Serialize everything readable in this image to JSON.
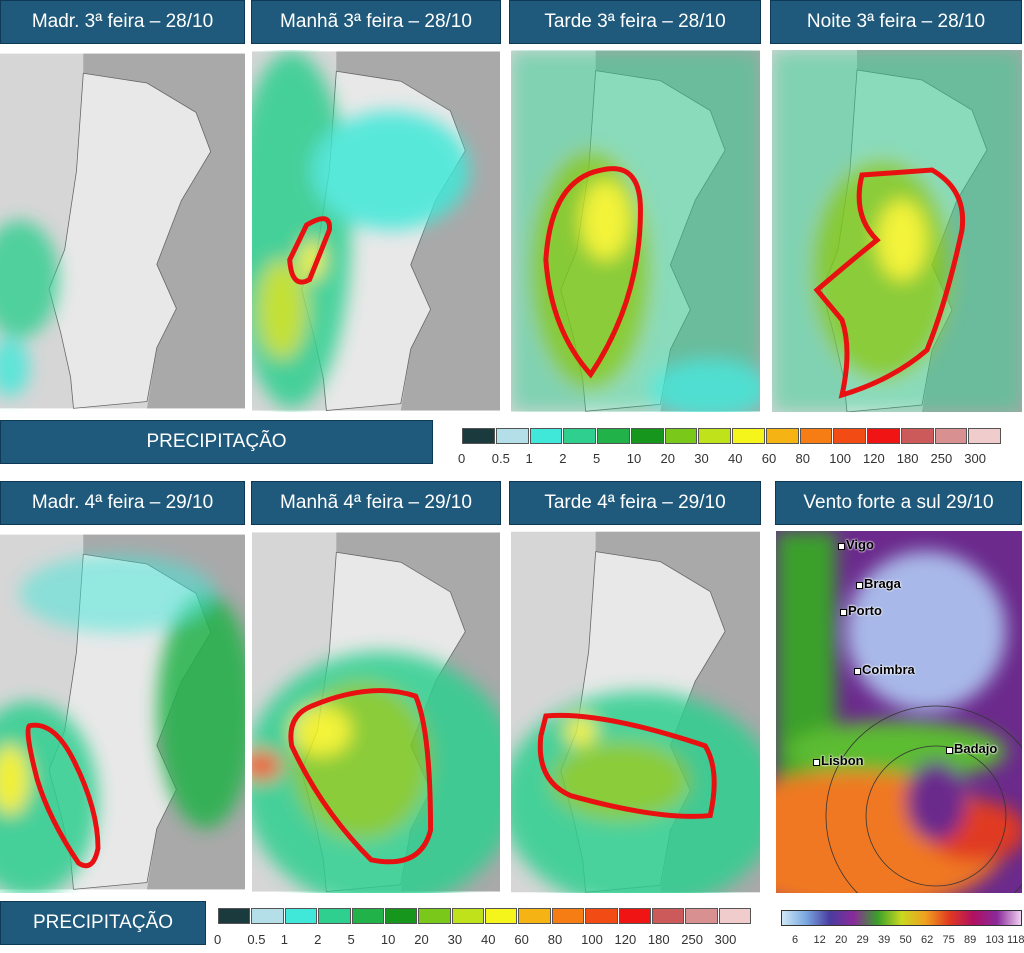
{
  "panels_top": [
    {
      "title": "Madr. 3ª feira – 28/10"
    },
    {
      "title": "Manhã 3ª feira – 28/10"
    },
    {
      "title": "Tarde 3ª feira – 28/10"
    },
    {
      "title": "Noite 3ª feira – 28/10"
    }
  ],
  "legend_top": {
    "title": "PRECIPITAÇÃO"
  },
  "panels_bottom": [
    {
      "title": "Madr. 4ª feira – 29/10"
    },
    {
      "title": "Manhã 4ª feira – 29/10"
    },
    {
      "title": "Tarde 4ª feira – 29/10"
    },
    {
      "title": "Vento forte a sul 29/10"
    }
  ],
  "legend_bottom": {
    "title": "PRECIPITAÇÃO"
  },
  "precip_scale": {
    "labels": [
      0,
      0.5,
      1,
      2,
      5,
      10,
      20,
      30,
      40,
      60,
      80,
      100,
      120,
      180,
      250,
      300
    ],
    "colors": [
      "#1b3a3d",
      "#b4dfe8",
      "#3fe8d8",
      "#2fcf8f",
      "#22b24a",
      "#16961c",
      "#7ac81a",
      "#c0e21a",
      "#f5f51c",
      "#f5b414",
      "#f57d14",
      "#f24b14",
      "#f01414",
      "#cc5a5a",
      "#d99090",
      "#f0cccc"
    ]
  },
  "wind_map": {
    "cities": [
      "Vigo",
      "Braga",
      "Porto",
      "Coimbra",
      "Lisbon",
      "Badajo"
    ]
  },
  "wind_scale": {
    "labels": [
      6,
      12,
      20,
      29,
      39,
      50,
      62,
      75,
      89,
      103,
      118
    ]
  }
}
